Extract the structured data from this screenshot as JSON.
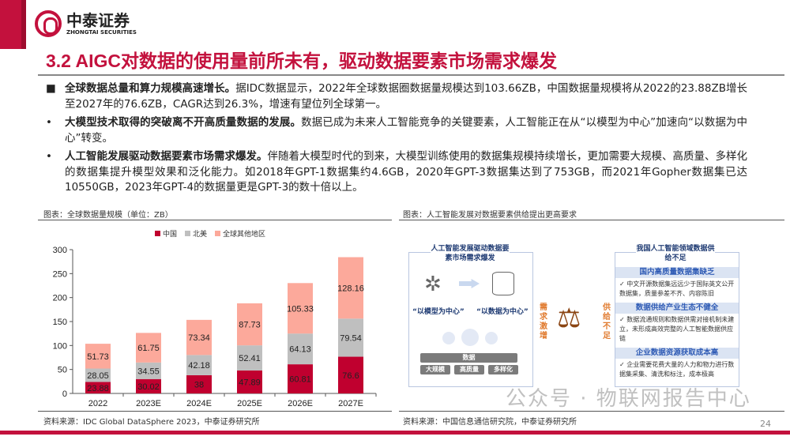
{
  "header": {
    "logo_cn": "中泰证券",
    "logo_en": "ZHONGTAI SECURITIES",
    "title": "3.2 AIGC对数据的使用量前所未有，驱动数据要素市场需求爆发"
  },
  "bullets": [
    {
      "marker": "■",
      "bold": "全球数据总量和算力规模高速增长。",
      "text": "据IDC数据显示，2022年全球数据圈数据量规模达到103.66ZB，中国数据量规模将从2022的23.88ZB增长至2027年的76.6ZB，CAGR达到26.3%，增速有望位列全球第一。"
    },
    {
      "marker": "•",
      "bold": "大模型技术取得的突破离不开高质量数据的发展。",
      "text": "数据已成为未来人工智能竞争的关键要素，人工智能正在从“以模型为中心”加速向“以数据为中心”转变。"
    },
    {
      "marker": "•",
      "bold": "人工智能发展驱动数据要素市场需求爆发。",
      "text": "伴随着大模型时代的到来，大模型训练使用的数据集规模持续增长，更加需要大规模、高质量、多样化的数据集提升模型效果和泛化能力。如2018年GPT-1数据集约4.6GB，2020年GPT-3数据集达到了753GB，而2021年Gopher数据集已达10550GB，2023年GPT-4的数据量更是GPT-3的数十倍以上。"
    }
  ],
  "left_figure": {
    "caption": "图表：全球数据量规模（单位：ZB）",
    "source": "资料来源：IDC Global DataSphere 2023，中泰证券研究所"
  },
  "chart_data": {
    "type": "bar",
    "stacked": true,
    "categories": [
      "2022",
      "2023E",
      "2024E",
      "2025E",
      "2026E",
      "2027E"
    ],
    "series": [
      {
        "name": "中国",
        "color": "#c0002f",
        "values": [
          23.88,
          30.02,
          38,
          47.89,
          60.81,
          76.6
        ]
      },
      {
        "name": "北美",
        "color": "#bfbfbf",
        "values": [
          28.05,
          34.55,
          42.18,
          52.41,
          64.13,
          79.54
        ]
      },
      {
        "name": "全球其他地区",
        "color": "#fca99b",
        "values": [
          51.73,
          61.75,
          73.34,
          87.73,
          105.33,
          128.16
        ]
      }
    ],
    "ylim": [
      0,
      300
    ],
    "yticks": [
      0,
      50,
      100,
      150,
      200,
      250,
      300
    ],
    "legend": "top",
    "grid": false
  },
  "right_figure": {
    "caption": "图表：人工智能发展对数据要素供给提出更高要求",
    "source": "资料来源：中国信息通信研究院，中泰证券研究所",
    "left_box": {
      "title": "人工智能发展驱动数据要素市场需求爆发",
      "from": "“以模型为中心”",
      "to": "“以数据为中心”",
      "base": "数据",
      "tags": [
        "大规模",
        "高质量",
        "多样化"
      ]
    },
    "demand": "需求激增",
    "supply": "供给不足",
    "right_box": {
      "title": "我国人工智能领域数据供给不足",
      "items": [
        {
          "head": "国内高质量数据集缺乏",
          "text": "中文开源数据集远远少于国际英文公开数据集，质量参差不齐、内容陈旧"
        },
        {
          "head": "数据供给产业生态不健全",
          "text": "数据流通规则和数据供需对接机制未建立，未形成高效完整的人工智能数据供应链"
        },
        {
          "head": "企业数据资源获取成本高",
          "text": "企业需要花费大量的人力和物力进行数据集采集、清洗和标注，成本极高"
        }
      ]
    }
  },
  "footer": {
    "watermark": "公众号 · 物联网报告中心",
    "page": "24"
  }
}
